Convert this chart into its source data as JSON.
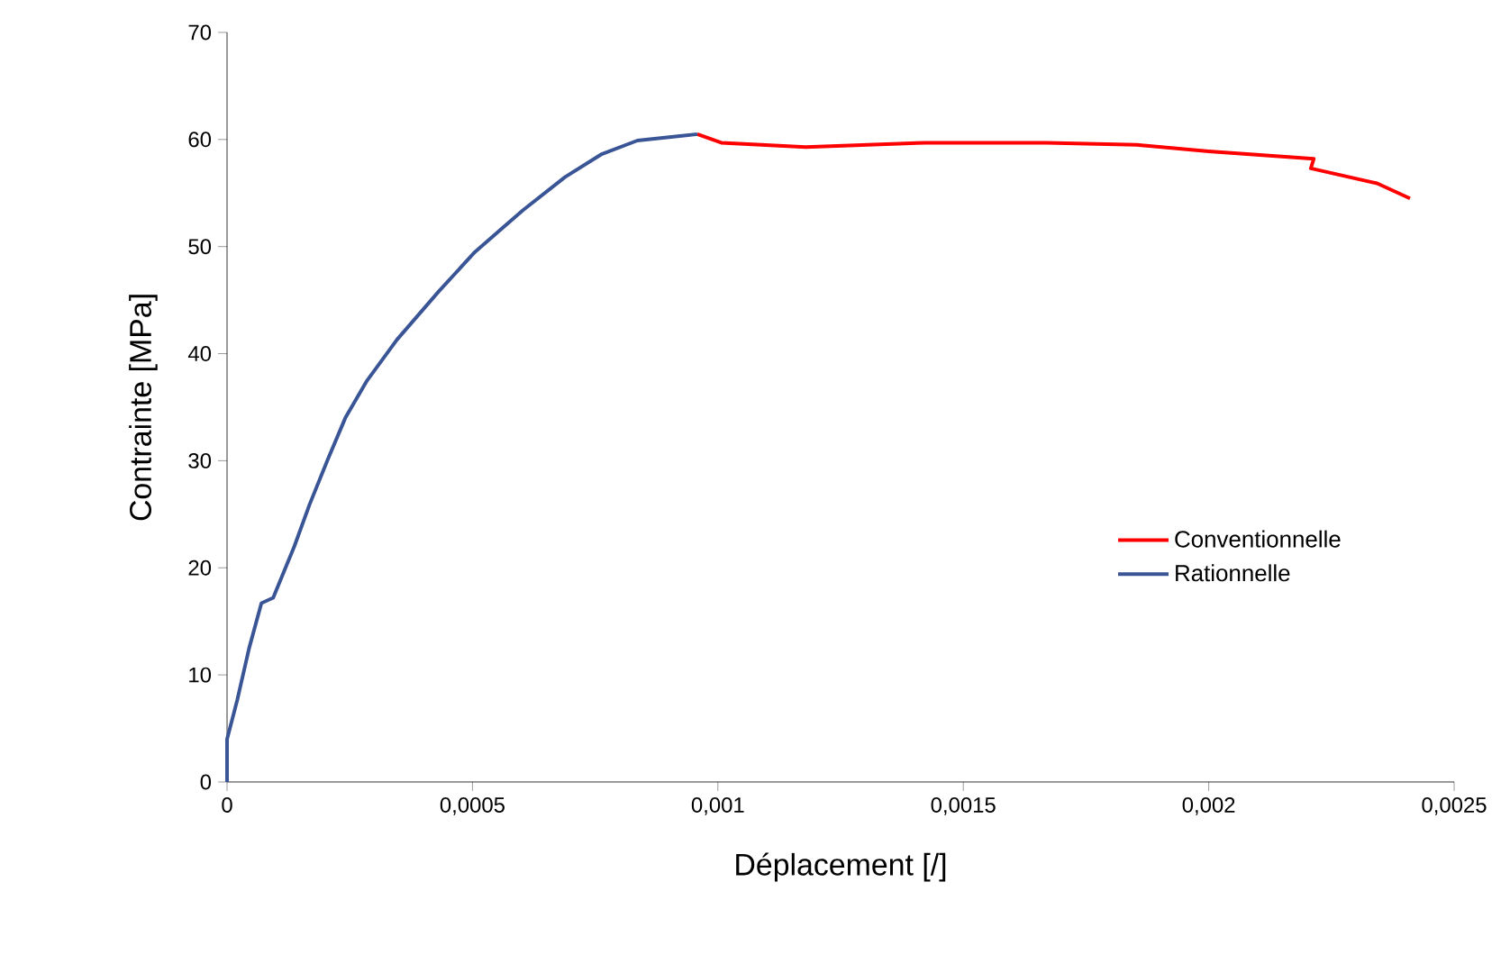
{
  "chart_data": {
    "type": "line",
    "xlabel": "Déplacement [/]",
    "ylabel": "Contrainte [MPa]",
    "xlim": [
      0,
      0.0025
    ],
    "ylim": [
      0,
      70
    ],
    "xticks": [
      0,
      {
        "value": 0.0005,
        "label": "0,0005"
      },
      {
        "value": 0.001,
        "label": "0,001"
      },
      {
        "value": 0.0015,
        "label": "0,0015"
      },
      {
        "value": 0.002,
        "label": "0,002"
      },
      {
        "value": 0.0025,
        "label": "0,0025"
      }
    ],
    "yticks": [
      0,
      10,
      20,
      30,
      40,
      50,
      60,
      70
    ],
    "legend": "right",
    "grid": false,
    "marker": "none",
    "line_style": "solid",
    "series": [
      {
        "name": "Conventionnelle",
        "color": "#ff0000",
        "x": [
          0.000958,
          0.001007,
          0.001179,
          0.001424,
          0.001669,
          0.001853,
          0.002,
          0.002214,
          0.002208,
          0.002343,
          0.00241
        ],
        "values": [
          60.5,
          59.7,
          59.3,
          59.7,
          59.7,
          59.5,
          58.9,
          58.2,
          57.3,
          55.9,
          54.5
        ]
      },
      {
        "name": "Rationnelle",
        "color": "#3a5596",
        "x": [
          0,
          0,
          2.1e-05,
          4.5e-05,
          7e-05,
          9.4e-05,
          0.000137,
          0.000168,
          0.000205,
          0.000241,
          0.000284,
          0.000346,
          0.000431,
          0.000505,
          0.000603,
          0.000689,
          0.000762,
          0.000836,
          0.000958
        ],
        "values": [
          0,
          4.0,
          7.7,
          12.5,
          16.7,
          17.2,
          22.0,
          25.9,
          30.1,
          34.0,
          37.4,
          41.3,
          45.8,
          49.5,
          53.4,
          56.5,
          58.6,
          59.9,
          60.5
        ]
      }
    ]
  }
}
